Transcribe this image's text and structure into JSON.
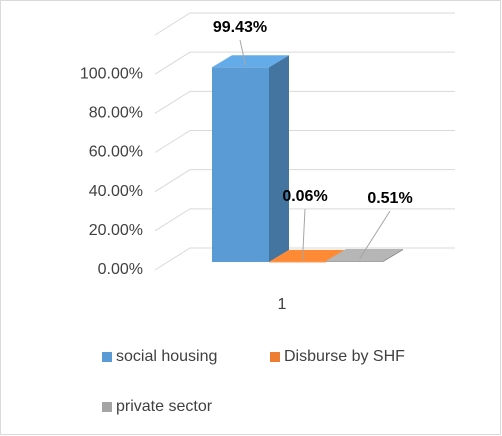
{
  "chart_data": {
    "type": "bar3d",
    "categories": [
      "1"
    ],
    "series": [
      {
        "name": "social housing",
        "color": "#5b9bd5",
        "values": [
          99.43
        ],
        "value_labels": [
          "99.43%"
        ]
      },
      {
        "name": "Disburse by SHF",
        "color": "#ed7d31",
        "values": [
          0.06
        ],
        "value_labels": [
          "0.06%"
        ]
      },
      {
        "name": "private sector",
        "color": "#a5a5a5",
        "values": [
          0.51
        ],
        "value_labels": [
          "0.51%"
        ]
      }
    ],
    "ylim": [
      0,
      120
    ],
    "yticks": [
      {
        "value": 0,
        "label": "0.00%"
      },
      {
        "value": 20,
        "label": "20.00%"
      },
      {
        "value": 40,
        "label": "40.00%"
      },
      {
        "value": 60,
        "label": "60.00%"
      },
      {
        "value": 80,
        "label": "80.00%"
      },
      {
        "value": 100,
        "label": "100.00%"
      }
    ],
    "grid": true,
    "legend": "bottom"
  }
}
